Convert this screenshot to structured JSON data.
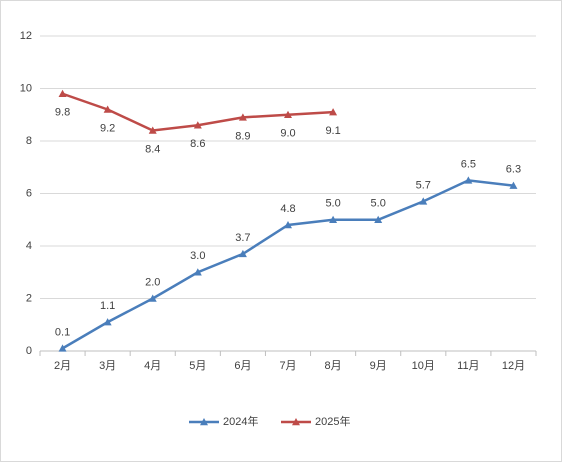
{
  "chart_data": {
    "type": "line",
    "categories": [
      "2月",
      "3月",
      "4月",
      "5月",
      "6月",
      "7月",
      "8月",
      "9月",
      "10月",
      "11月",
      "12月"
    ],
    "series": [
      {
        "name": "2024年",
        "color": "#4a7ebb",
        "values": [
          0.1,
          1.1,
          2.0,
          3.0,
          3.7,
          4.8,
          5.0,
          5.0,
          5.7,
          6.5,
          6.3
        ],
        "value_labels": [
          "0.1",
          "1.1",
          "2.0",
          "3.0",
          "3.7",
          "4.8",
          "5.0",
          "5.0",
          "5.7",
          "6.5",
          "6.3"
        ]
      },
      {
        "name": "2025年",
        "color": "#be4b48",
        "values": [
          9.8,
          9.2,
          8.4,
          8.6,
          8.9,
          9.0,
          9.1,
          null,
          null,
          null,
          null
        ],
        "value_labels": [
          "9.8",
          "9.2",
          "8.4",
          "8.6",
          "8.9",
          "9.0",
          "9.1",
          null,
          null,
          null,
          null
        ]
      }
    ],
    "ylim": [
      0,
      12
    ],
    "yticks": [
      0,
      2,
      4,
      6,
      8,
      10,
      12
    ],
    "grid": true,
    "legend": "bottom"
  }
}
